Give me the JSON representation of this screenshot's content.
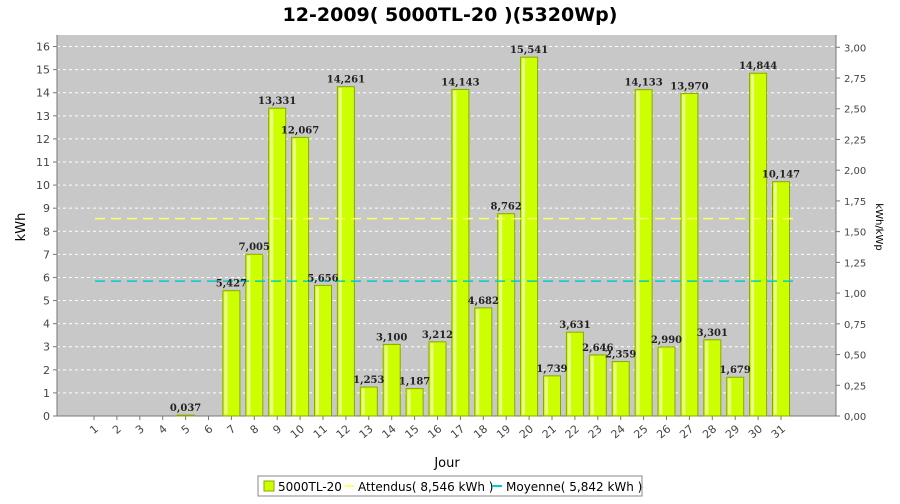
{
  "chart_data": {
    "type": "bar",
    "title": "12-2009( 5000TL-20 )(5320Wp)",
    "xlabel": "Jour",
    "ylabel": "kWh",
    "y2label": "kWh/kWp",
    "ylim": [
      0,
      16.5
    ],
    "y2lim": [
      0,
      3.1
    ],
    "yticks": [
      "0",
      "1",
      "2",
      "3",
      "4",
      "5",
      "6",
      "7",
      "8",
      "9",
      "10",
      "11",
      "12",
      "13",
      "14",
      "15",
      "16"
    ],
    "y2ticks": [
      "0,00",
      "0,25",
      "0,50",
      "0,75",
      "1,00",
      "1,25",
      "1,50",
      "1,75",
      "2,00",
      "2,25",
      "2,50",
      "2,75",
      "3,00"
    ],
    "categories": [
      "1",
      "2",
      "3",
      "4",
      "5",
      "6",
      "7",
      "8",
      "9",
      "10",
      "11",
      "12",
      "13",
      "14",
      "15",
      "16",
      "17",
      "18",
      "19",
      "20",
      "21",
      "22",
      "23",
      "24",
      "25",
      "26",
      "27",
      "28",
      "29",
      "30",
      "31"
    ],
    "series": [
      {
        "name": "5000TL-20",
        "color": "#ccff00",
        "values": [
          0,
          0,
          0,
          0,
          0.037,
          0,
          5.427,
          7.005,
          13.331,
          12.067,
          5.656,
          14.261,
          1.253,
          3.1,
          1.187,
          3.212,
          14.143,
          4.682,
          8.762,
          15.541,
          1.739,
          3.631,
          2.646,
          2.359,
          14.133,
          2.99,
          13.97,
          3.301,
          1.679,
          14.844,
          10.147
        ],
        "labels": [
          "",
          "",
          "",
          "",
          "0,037",
          "",
          "5,427",
          "7,005",
          "13,331",
          "12,067",
          "5,656",
          "14,261",
          "1,253",
          "3,100",
          "1,187",
          "3,212",
          "14,143",
          "4,682",
          "8,762",
          "15,541",
          "1,739",
          "3,631",
          "2,646",
          "2,359",
          "14,133",
          "2,990",
          "13,970",
          "3,301",
          "1,679",
          "14,844",
          "10,147"
        ]
      }
    ],
    "reference_lines": [
      {
        "name": "Attendus",
        "value": 8.546,
        "color": "#ffff66"
      },
      {
        "name": "Moyenne",
        "value": 5.842,
        "color": "#00cccc"
      }
    ],
    "legend": {
      "placement": "bottom",
      "entries": [
        "5000TL-20",
        "Attendus( 8,546 kWh )",
        "Moyenne( 5,842 kWh )"
      ]
    },
    "colors": {
      "plot_background": "#c8c8c8",
      "grid": "#ffffff",
      "bar_fill": "#ccff00",
      "bar_edge": "#88aa00"
    }
  }
}
